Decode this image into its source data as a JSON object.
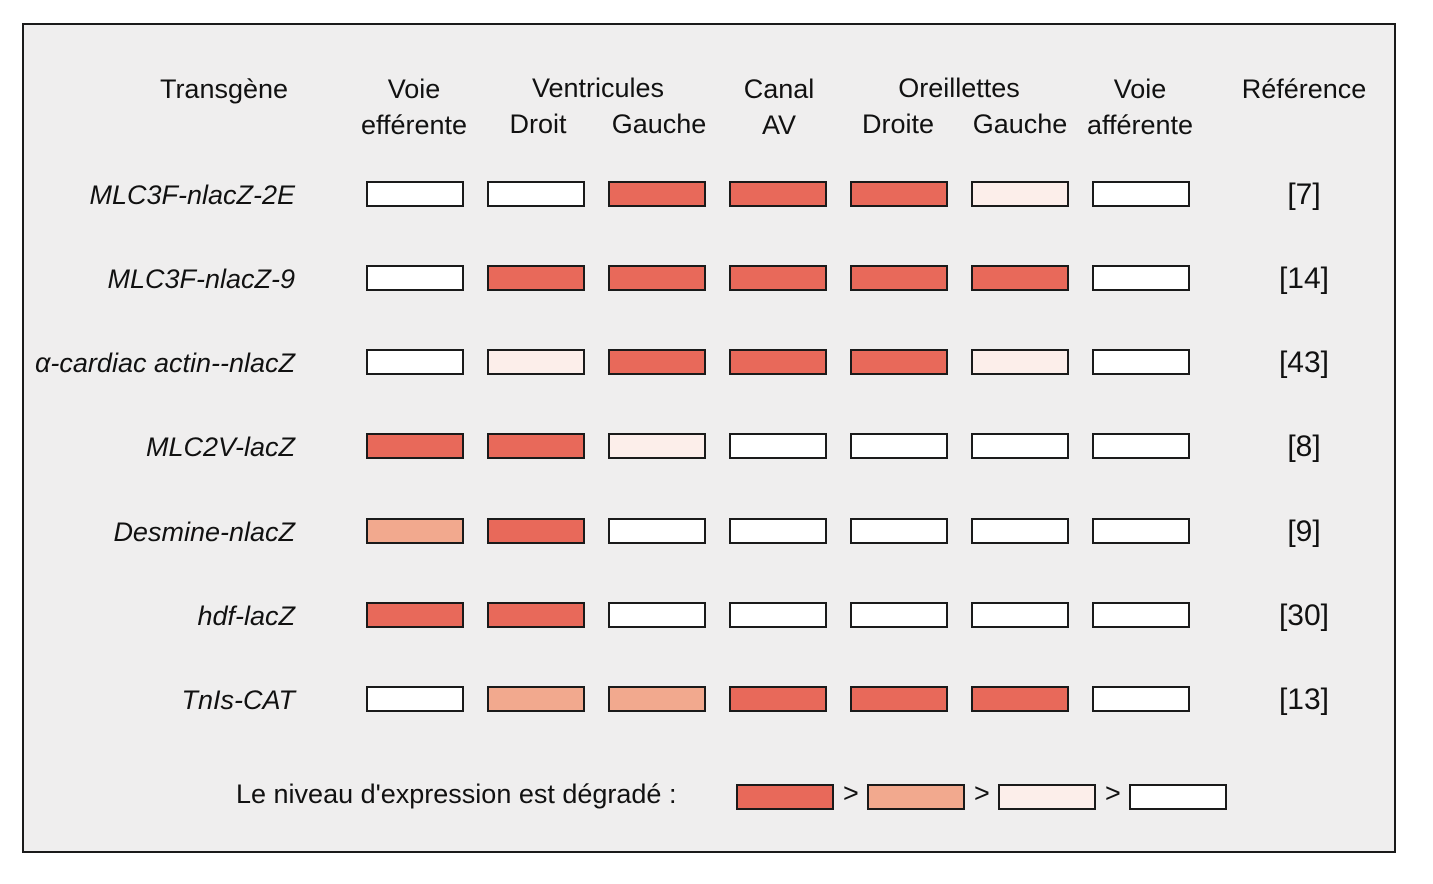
{
  "headers": {
    "transgene": "Transgène",
    "outflow_line1": "Voie",
    "outflow_line2": "efférente",
    "ventricles": "Ventricules",
    "right_ventricle": "Droit",
    "left_ventricle": "Gauche",
    "av_line1": "Canal",
    "av_line2": "AV",
    "atria": "Oreillettes",
    "right_atrium": "Droite",
    "left_atrium": "Gauche",
    "inflow_line1": "Voie",
    "inflow_line2": "afférente",
    "reference": "Référence"
  },
  "rows": [
    {
      "transgene": "MLC3F-nlacZ-2E",
      "reference": "[7]",
      "levels": [
        "none",
        "none",
        "high",
        "high",
        "high",
        "low",
        "none"
      ]
    },
    {
      "transgene": "MLC3F-nlacZ-9",
      "reference": "[14]",
      "levels": [
        "none",
        "high",
        "high",
        "high",
        "high",
        "high",
        "none"
      ]
    },
    {
      "transgene": "α-cardiac actin--nlacZ",
      "reference": "[43]",
      "levels": [
        "none",
        "low",
        "high",
        "high",
        "high",
        "low",
        "none"
      ]
    },
    {
      "transgene": "MLC2V-lacZ",
      "reference": "[8]",
      "levels": [
        "high",
        "high",
        "low",
        "none",
        "none",
        "none",
        "none"
      ]
    },
    {
      "transgene": "Desmine-nlacZ",
      "reference": "[9]",
      "levels": [
        "mid",
        "high",
        "none",
        "none",
        "none",
        "none",
        "none"
      ]
    },
    {
      "transgene": "hdf-lacZ",
      "reference": "[30]",
      "levels": [
        "high",
        "high",
        "none",
        "none",
        "none",
        "none",
        "none"
      ]
    },
    {
      "transgene": "TnIs-CAT",
      "reference": "[13]",
      "levels": [
        "none",
        "mid",
        "mid",
        "high",
        "high",
        "high",
        "none"
      ]
    }
  ],
  "legend": {
    "text": "Le niveau d'expression est dégradé :",
    "separator": ">",
    "levels": [
      "high",
      "mid",
      "low",
      "none"
    ]
  },
  "colors": {
    "high": "#e8695a",
    "mid": "#f2a98e",
    "low": "#fceeea",
    "none": "#ffffff"
  }
}
